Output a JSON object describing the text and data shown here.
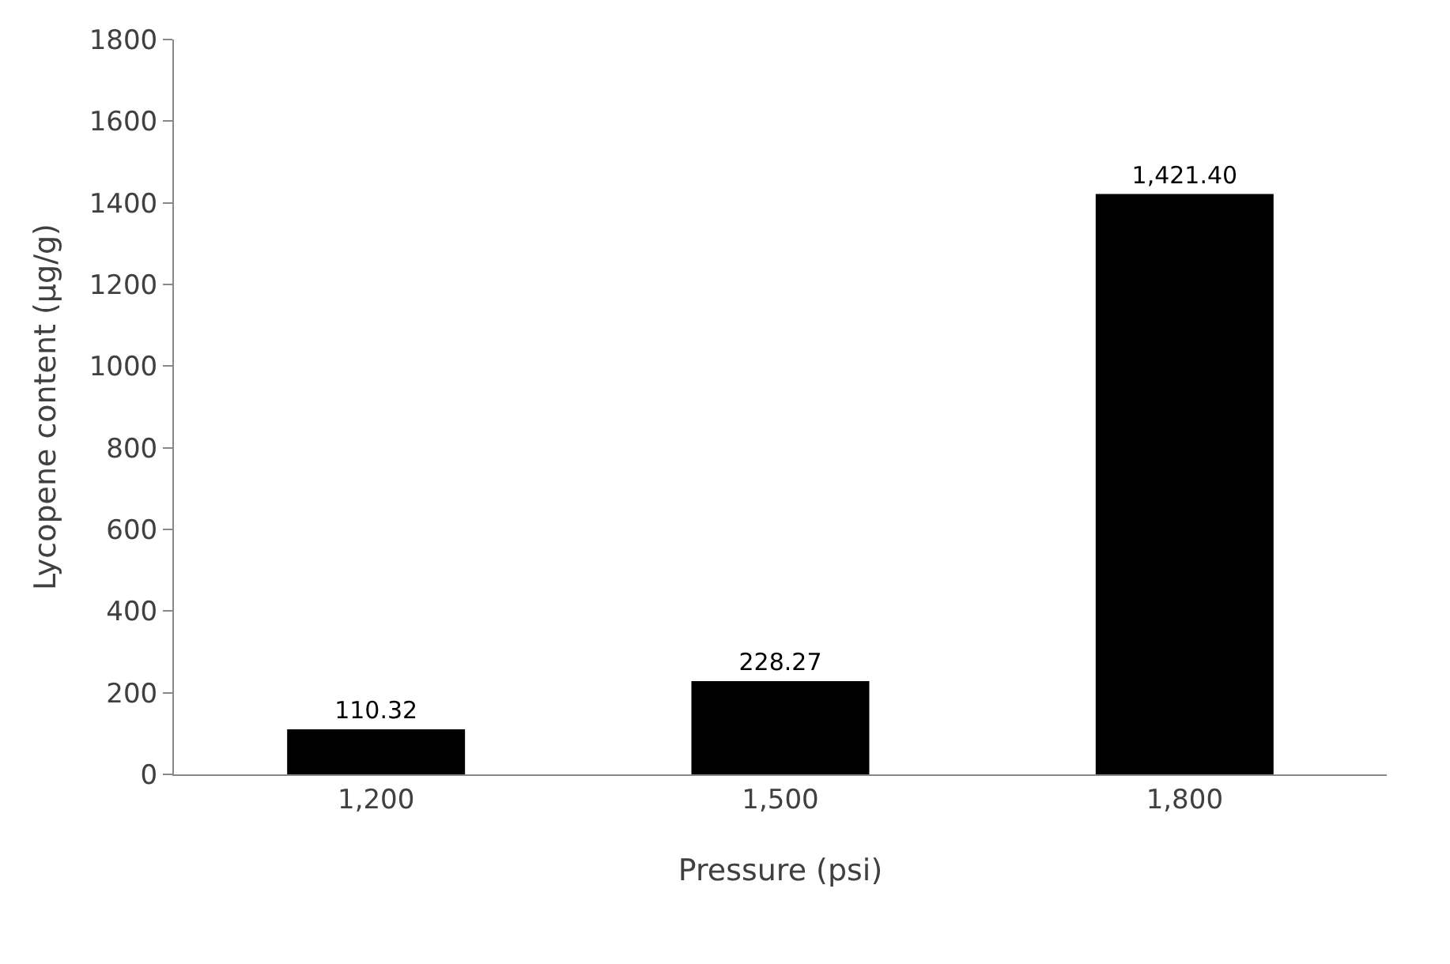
{
  "chart_data": {
    "type": "bar",
    "xlabel": "Pressure (psi)",
    "ylabel": "Lycopene content (µg/g)",
    "categories": [
      "1,200",
      "1,500",
      "1,800"
    ],
    "values": [
      110.32,
      228.27,
      1421.4
    ],
    "value_labels": [
      "110.32",
      "228.27",
      "1,421.40"
    ],
    "color": "#000000",
    "ylim": [
      0,
      1800
    ],
    "yticks": [
      0,
      200,
      400,
      600,
      800,
      1000,
      1200,
      1400,
      1600,
      1800
    ]
  }
}
